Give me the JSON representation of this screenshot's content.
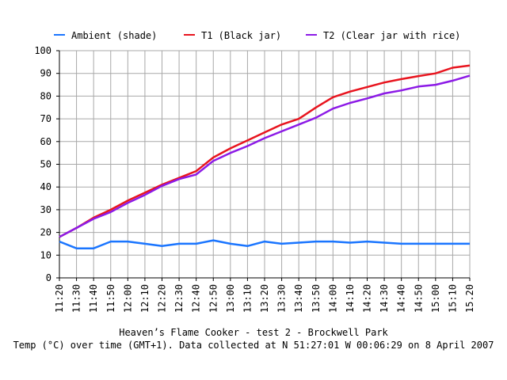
{
  "chart_data": {
    "type": "line",
    "title": "Heaven’s Flame Cooker - test 2 - Brockwell Park",
    "subtitle": "Temp (°C) over time (GMT+1). Data collected at N 51:27:01 W 00:06:29 on 8 April 2007",
    "xlabel": "",
    "ylabel": "",
    "ylim": [
      0,
      100
    ],
    "yticks": [
      0,
      10,
      20,
      30,
      40,
      50,
      60,
      70,
      80,
      90,
      100
    ],
    "grid": true,
    "legend_position": "top",
    "categories": [
      "11:20",
      "11:30",
      "11:40",
      "11:50",
      "12:00",
      "12:10",
      "12:20",
      "12:30",
      "12:40",
      "12:50",
      "13:00",
      "13:10",
      "13:20",
      "13:30",
      "13:40",
      "13:50",
      "14:00",
      "14:10",
      "14:20",
      "14:30",
      "14:40",
      "14:50",
      "15:00",
      "15:10",
      "15.20"
    ],
    "series": [
      {
        "name": "Ambient (shade)",
        "color": "#1a75ff",
        "values": [
          16,
          13,
          13,
          16,
          16,
          15,
          14,
          15,
          15,
          16.5,
          15,
          14,
          16,
          15,
          15.5,
          16,
          16,
          15.5,
          16,
          15.5,
          15,
          15,
          15,
          15,
          15
        ]
      },
      {
        "name": "T1 (Black jar)",
        "color": "#e8141e",
        "values": [
          18,
          22,
          26.5,
          30,
          34,
          37.5,
          41,
          44,
          47,
          53,
          57,
          60.5,
          64,
          67.5,
          70,
          75,
          79.5,
          82,
          84,
          86,
          87.5,
          88.8,
          90,
          92.5,
          93.5
        ]
      },
      {
        "name": "T2 (Clear jar with rice)",
        "color": "#8c1ae6",
        "values": [
          18,
          22,
          26,
          29,
          33,
          36.5,
          40.5,
          43.5,
          45.5,
          51.5,
          55,
          58,
          61.5,
          64.5,
          67.5,
          70.5,
          74.5,
          77,
          79,
          81.2,
          82.5,
          84.2,
          85,
          86.8,
          89
        ]
      }
    ]
  }
}
